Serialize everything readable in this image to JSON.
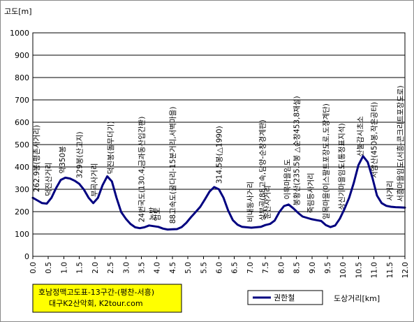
{
  "chart_data": {
    "type": "line",
    "ylabel": "고도[m]",
    "xlabel": "도상거리[km]",
    "xlim": [
      0.0,
      12.0
    ],
    "ylim": [
      0,
      1000
    ],
    "grid": true,
    "xticks": [
      "0.0",
      "0.5",
      "1.0",
      "1.5",
      "2.0",
      "2.5",
      "3.0",
      "3.5",
      "4.0",
      "4.5",
      "5.0",
      "5.5",
      "6.0",
      "6.5",
      "7.0",
      "7.5",
      "8.0",
      "8.5",
      "9.0",
      "9.5",
      "10.0",
      "10.5",
      "11.0",
      "11.5",
      "12.0"
    ],
    "yticks": [
      "0",
      "100",
      "200",
      "300",
      "400",
      "500",
      "600",
      "700",
      "800",
      "900",
      "1000"
    ],
    "legend_position": "bottom-center",
    "series": [
      {
        "name": "권한철",
        "color": "#000080",
        "x": [
          0.0,
          0.15,
          0.3,
          0.45,
          0.6,
          0.75,
          0.9,
          1.05,
          1.2,
          1.35,
          1.5,
          1.65,
          1.8,
          1.95,
          2.1,
          2.25,
          2.4,
          2.55,
          2.7,
          2.85,
          3.0,
          3.15,
          3.3,
          3.45,
          3.6,
          3.75,
          3.9,
          4.05,
          4.2,
          4.35,
          4.5,
          4.65,
          4.8,
          4.95,
          5.1,
          5.25,
          5.4,
          5.55,
          5.7,
          5.85,
          6.0,
          6.15,
          6.3,
          6.45,
          6.6,
          6.75,
          6.9,
          7.05,
          7.2,
          7.35,
          7.5,
          7.65,
          7.8,
          7.95,
          8.1,
          8.25,
          8.4,
          8.55,
          8.7,
          8.85,
          9.0,
          9.15,
          9.3,
          9.45,
          9.6,
          9.75,
          9.9,
          10.05,
          10.2,
          10.35,
          10.5,
          10.65,
          10.8,
          10.95,
          11.1,
          11.25,
          11.4,
          11.55,
          11.7,
          11.85,
          12.0
        ],
        "values": [
          262,
          250,
          238,
          236,
          262,
          305,
          342,
          352,
          348,
          338,
          324,
          298,
          262,
          238,
          262,
          318,
          358,
          335,
          262,
          198,
          168,
          145,
          130,
          126,
          130,
          138,
          135,
          132,
          124,
          120,
          121,
          122,
          131,
          150,
          175,
          198,
          222,
          255,
          290,
          310,
          300,
          262,
          205,
          162,
          142,
          132,
          130,
          128,
          130,
          132,
          140,
          145,
          160,
          198,
          225,
          232,
          215,
          195,
          178,
          172,
          166,
          162,
          158,
          140,
          131,
          138,
          168,
          212,
          262,
          328,
          408,
          448,
          422,
          352,
          272,
          238,
          226,
          222,
          220,
          219,
          218
        ]
      }
    ],
    "annotations": [
      {
        "text": "262.9봉(평촌사거리)",
        "x": 0.0
      },
      {
        "text": "덕진산거리",
        "x": 0.5
      },
      {
        "text": "약350봉",
        "x": 0.95
      },
      {
        "text": "329봉(산고지)",
        "x": 1.5
      },
      {
        "text": "부곡사거리",
        "x": 1.97
      },
      {
        "text": "덕진봉(돌무더기)",
        "x": 2.5
      },
      {
        "text": "24번국도(130.4,금과동산입간판)",
        "x": 3.5
      },
      {
        "text": "논밭",
        "x": 3.85
      },
      {
        "text": "임도",
        "x": 4.0
      },
      {
        "text": "88고속도(굴다리-15분거리,서벽마을)",
        "x": 4.5
      },
      {
        "text": "314.5봉(△1990)",
        "x": 6.0
      },
      {
        "text": "비내동사거리",
        "x": 7.0
      },
      {
        "text": "상부곡(88고속,담양-순창경계판)",
        "x": 7.4
      },
      {
        "text": "운산사거리",
        "x": 7.55
      },
      {
        "text": "이목마을임도",
        "x": 8.2
      },
      {
        "text": "봉황산(235.5봉 △순창453,8재설)",
        "x": 8.5
      },
      {
        "text": "죽림등사거리",
        "x": 8.95
      },
      {
        "text": "일목마을(이스팔트포장도로,도장계단)",
        "x": 9.45
      },
      {
        "text": "상신기마을임도(통정표지석)",
        "x": 9.95
      },
      {
        "text": "산불감시초소",
        "x": 10.55
      },
      {
        "text": "서암산(450봉,작은공터)",
        "x": 11.0
      },
      {
        "text": "사거리",
        "x": 11.5
      },
      {
        "text": "서흥마을임도(서흥-콘크리트포장도로)",
        "x": 11.85
      }
    ]
  },
  "caption": {
    "line1": "호남정맥고도표-13구간-(평찬-서흥)",
    "line2": "대구K2산악회, K2tour.com"
  },
  "colors": {
    "caption_bg": "#ffff00",
    "line": "#000080",
    "grid": "#000000"
  }
}
